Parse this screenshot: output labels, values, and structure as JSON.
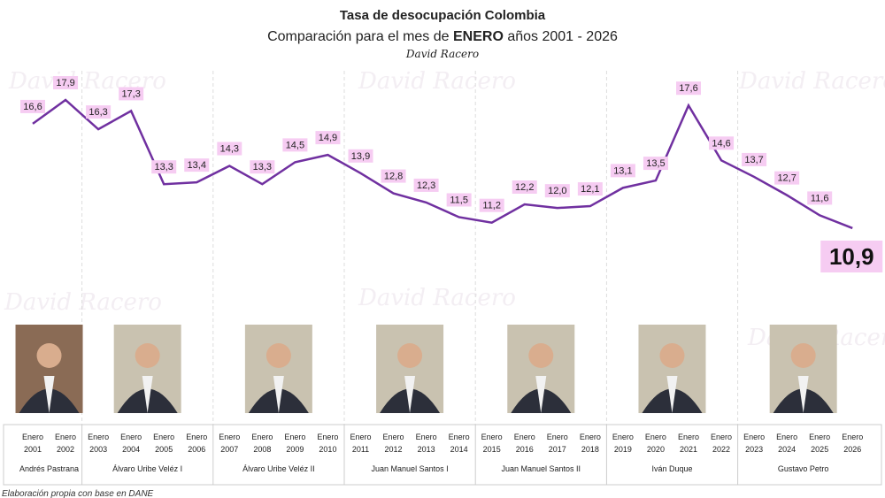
{
  "chart_data": {
    "type": "line",
    "title": "Tasa de desocupación Colombia",
    "subtitle_parts": [
      "Comparación para el mes de ",
      "ENERO",
      " años 2001 - 2026"
    ],
    "author": "David Racero",
    "categories_top": [
      "Enero",
      "Enero",
      "Enero",
      "Enero",
      "Enero",
      "Enero",
      "Enero",
      "Enero",
      "Enero",
      "Enero",
      "Enero",
      "Enero",
      "Enero",
      "Enero",
      "Enero",
      "Enero",
      "Enero",
      "Enero",
      "Enero",
      "Enero",
      "Enero",
      "Enero",
      "Enero",
      "Enero",
      "Enero",
      "Enero"
    ],
    "years": [
      "2001",
      "2002",
      "2003",
      "2004",
      "2005",
      "2006",
      "2007",
      "2008",
      "2009",
      "2010",
      "2011",
      "2012",
      "2013",
      "2014",
      "2015",
      "2016",
      "2017",
      "2018",
      "2019",
      "2020",
      "2021",
      "2022",
      "2023",
      "2024",
      "2025",
      "2026"
    ],
    "values": [
      16.6,
      17.9,
      16.3,
      17.3,
      13.3,
      13.4,
      14.3,
      13.3,
      14.5,
      14.9,
      13.9,
      12.8,
      12.3,
      11.5,
      11.2,
      12.2,
      12.0,
      12.1,
      13.1,
      13.5,
      17.6,
      14.6,
      13.7,
      12.7,
      11.6,
      10.9
    ],
    "value_labels": [
      "16,6",
      "17,9",
      "16,3",
      "17,3",
      "13,3",
      "13,4",
      "14,3",
      "13,3",
      "14,5",
      "14,9",
      "13,9",
      "12,8",
      "12,3",
      "11,5",
      "11,2",
      "12,2",
      "12,0",
      "12,1",
      "13,1",
      "13,5",
      "17,6",
      "14,6",
      "13,7",
      "12,7",
      "11,6",
      "10,9"
    ],
    "presidents": [
      {
        "name": "Andrés Pastrana",
        "from": 0,
        "to": 1
      },
      {
        "name": "Álvaro Uribe Veléz I",
        "from": 2,
        "to": 5
      },
      {
        "name": "Álvaro Uribe Veléz II",
        "from": 6,
        "to": 9
      },
      {
        "name": "Juan Manuel Santos I",
        "from": 10,
        "to": 13
      },
      {
        "name": "Juan Manuel Santos II",
        "from": 14,
        "to": 17
      },
      {
        "name": "Iván Duque",
        "from": 18,
        "to": 21
      },
      {
        "name": "Gustavo Petro",
        "from": 22,
        "to": 25
      }
    ],
    "line_color": "#7030a0",
    "label_bg": "#f6ccf2",
    "grid": false,
    "legend": "none",
    "footnote": "Elaboración propia con base en DANE"
  }
}
